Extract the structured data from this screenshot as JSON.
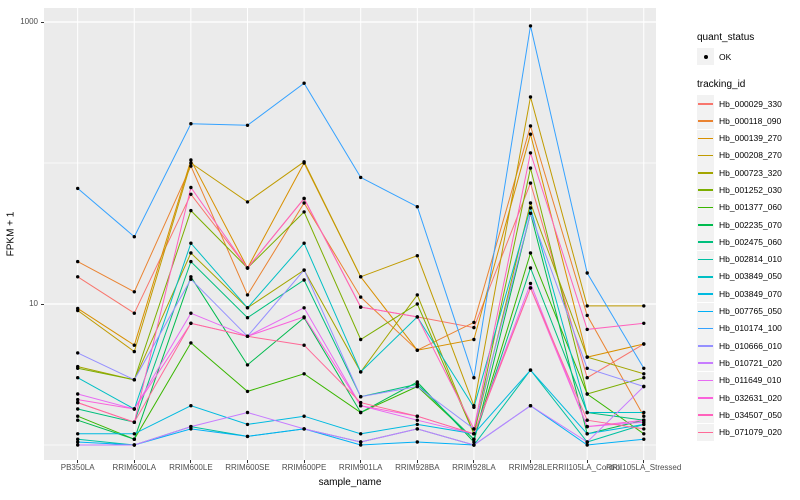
{
  "figure": {
    "background": "#FFFFFF",
    "panel_background": "#EBEBEB",
    "gridline_color": "#FFFFFF",
    "point_color": "#000000",
    "axis_text_color": "#4D4D4D"
  },
  "axes": {
    "x": {
      "label": "sample_name",
      "tick_labels": [
        "PB350LA",
        "RRIM600LA",
        "RRIM600LE",
        "RRIM600SE",
        "RRIM600PE",
        "RRIM901LA",
        "RRIM928BA",
        "RRIM928LA",
        "RRIM928LE",
        "RRII105LA_Control",
        "RRII105LA_Stressed"
      ]
    },
    "y": {
      "label": "FPKM + 1",
      "scale": "log10",
      "tick_labels": [
        "1000",
        "10"
      ],
      "tick_values": [
        1000,
        10
      ]
    }
  },
  "legend": {
    "quant_status": {
      "title": "quant_status",
      "items": [
        {
          "label": "OK",
          "marker": "point"
        }
      ]
    },
    "tracking_id": {
      "title": "tracking_id"
    }
  },
  "chart_data": {
    "type": "line",
    "title": "",
    "xlabel": "sample_name",
    "ylabel": "FPKM + 1",
    "y_scale": "log10",
    "ylim": [
      1,
      1000
    ],
    "grid": "major-and-minor-white-on-gray",
    "legend_position": "right",
    "major_gridlines_y": [
      10,
      1000
    ],
    "minor_gridlines_y": [
      1,
      100
    ],
    "point_marker": {
      "shape": "filled-circle",
      "color": "#000000",
      "label": "OK"
    },
    "categories": [
      "PB350LA",
      "RRIM600LA",
      "RRIM600LE",
      "RRIM600SE",
      "RRIM600PE",
      "RRIM901LA",
      "RRIM928BA",
      "RRIM928LA",
      "RRIM928LE",
      "RRII105LA_Control",
      "RRII105LA_Stressed"
    ],
    "series": [
      {
        "name": "Hb_000029_330",
        "color": "#F8766D",
        "values": [
          15.6,
          8.6,
          60,
          18,
          56,
          9.5,
          8.1,
          6.8,
          72,
          3.0,
          5.2
        ]
      },
      {
        "name": "Hb_000118_090",
        "color": "#EA8331",
        "values": [
          20,
          12.2,
          95,
          11.6,
          52,
          11.2,
          4.7,
          7.4,
          183,
          8.3,
          1.6
        ]
      },
      {
        "name": "Hb_000139_270",
        "color": "#D89000",
        "values": [
          9.3,
          5.1,
          105,
          18,
          100,
          15.6,
          4.7,
          5.6,
          160,
          4.2,
          5.2
        ]
      },
      {
        "name": "Hb_000208_270",
        "color": "#C09B00",
        "values": [
          9.0,
          4.6,
          100,
          53,
          102,
          15.6,
          22,
          1.9,
          294,
          9.7,
          9.7
        ]
      },
      {
        "name": "Hb_000723_320",
        "color": "#A3A500",
        "values": [
          3.6,
          2.9,
          23,
          9.4,
          17.4,
          3.3,
          11.6,
          1.2,
          52,
          4.2,
          3.2
        ]
      },
      {
        "name": "Hb_001252_030",
        "color": "#7CAE00",
        "values": [
          3.5,
          2.9,
          46,
          18,
          45,
          5.6,
          10,
          1.2,
          92,
          2.3,
          3.0
        ]
      },
      {
        "name": "Hb_001377_060",
        "color": "#39B600",
        "values": [
          1.6,
          1.1,
          5.3,
          2.4,
          3.2,
          1.7,
          2.6,
          1.1,
          23,
          2.3,
          1.2
        ]
      },
      {
        "name": "Hb_002235_070",
        "color": "#00BB4E",
        "values": [
          1.5,
          1.1,
          15.6,
          3.7,
          8.0,
          1.7,
          2.8,
          1.05,
          44,
          1.2,
          1.5
        ]
      },
      {
        "name": "Hb_002475_060",
        "color": "#00BF7D",
        "values": [
          1.8,
          1.45,
          20,
          8.0,
          14.8,
          2.2,
          2.7,
          1.1,
          18,
          1.7,
          1.5
        ]
      },
      {
        "name": "Hb_002814_010",
        "color": "#00C1A3",
        "values": [
          1.1,
          1.0,
          1.35,
          1.15,
          1.3,
          1.05,
          1.3,
          1.0,
          3.4,
          1.05,
          1.4
        ]
      },
      {
        "name": "Hb_003849_050",
        "color": "#00BFC4",
        "values": [
          3.0,
          1.8,
          27,
          9.4,
          27,
          3.3,
          8.1,
          1.85,
          48,
          1.7,
          1.7
        ]
      },
      {
        "name": "Hb_003849_070",
        "color": "#00BAE0",
        "values": [
          1.2,
          1.2,
          1.9,
          1.4,
          1.6,
          1.2,
          1.4,
          1.2,
          3.4,
          1.2,
          1.4
        ]
      },
      {
        "name": "Hb_007765_050",
        "color": "#00B0F6",
        "values": [
          1.05,
          1.0,
          1.3,
          1.15,
          1.3,
          1.0,
          1.05,
          1.0,
          1.9,
          1.0,
          1.1
        ]
      },
      {
        "name": "Hb_010174_100",
        "color": "#35A2FF",
        "values": [
          66,
          30,
          190,
          185,
          368,
          79,
          49,
          3.0,
          938,
          16.6,
          3.5
        ]
      },
      {
        "name": "Hb_010666_010",
        "color": "#9590FF",
        "values": [
          4.5,
          2.9,
          15,
          5.9,
          17.4,
          2.2,
          2.6,
          1.3,
          44,
          3.5,
          2.6
        ]
      },
      {
        "name": "Hb_010721_020",
        "color": "#C77CFF",
        "values": [
          1.0,
          1.0,
          1.35,
          1.7,
          1.3,
          1.05,
          1.3,
          1.0,
          1.9,
          1.05,
          2.6
        ]
      },
      {
        "name": "Hb_011649_010",
        "color": "#E76BF3",
        "values": [
          2.3,
          1.8,
          8.6,
          5.9,
          9.4,
          1.9,
          1.5,
          1.2,
          14,
          1.35,
          1.45
        ]
      },
      {
        "name": "Hb_032631_020",
        "color": "#FA62DB",
        "values": [
          2.1,
          1.8,
          7.3,
          5.9,
          8.1,
          1.9,
          1.6,
          1.2,
          13,
          1.35,
          1.5
        ]
      },
      {
        "name": "Hb_034507_050",
        "color": "#FF62BC",
        "values": [
          2.0,
          1.45,
          67,
          18,
          56,
          9.5,
          8.1,
          1.3,
          118,
          6.6,
          7.3
        ]
      },
      {
        "name": "Hb_071079_020",
        "color": "#FF6A98",
        "values": [
          2.0,
          1.45,
          7.3,
          5.9,
          5.1,
          2.0,
          1.6,
          1.2,
          13,
          1.5,
          1.3
        ]
      }
    ]
  }
}
